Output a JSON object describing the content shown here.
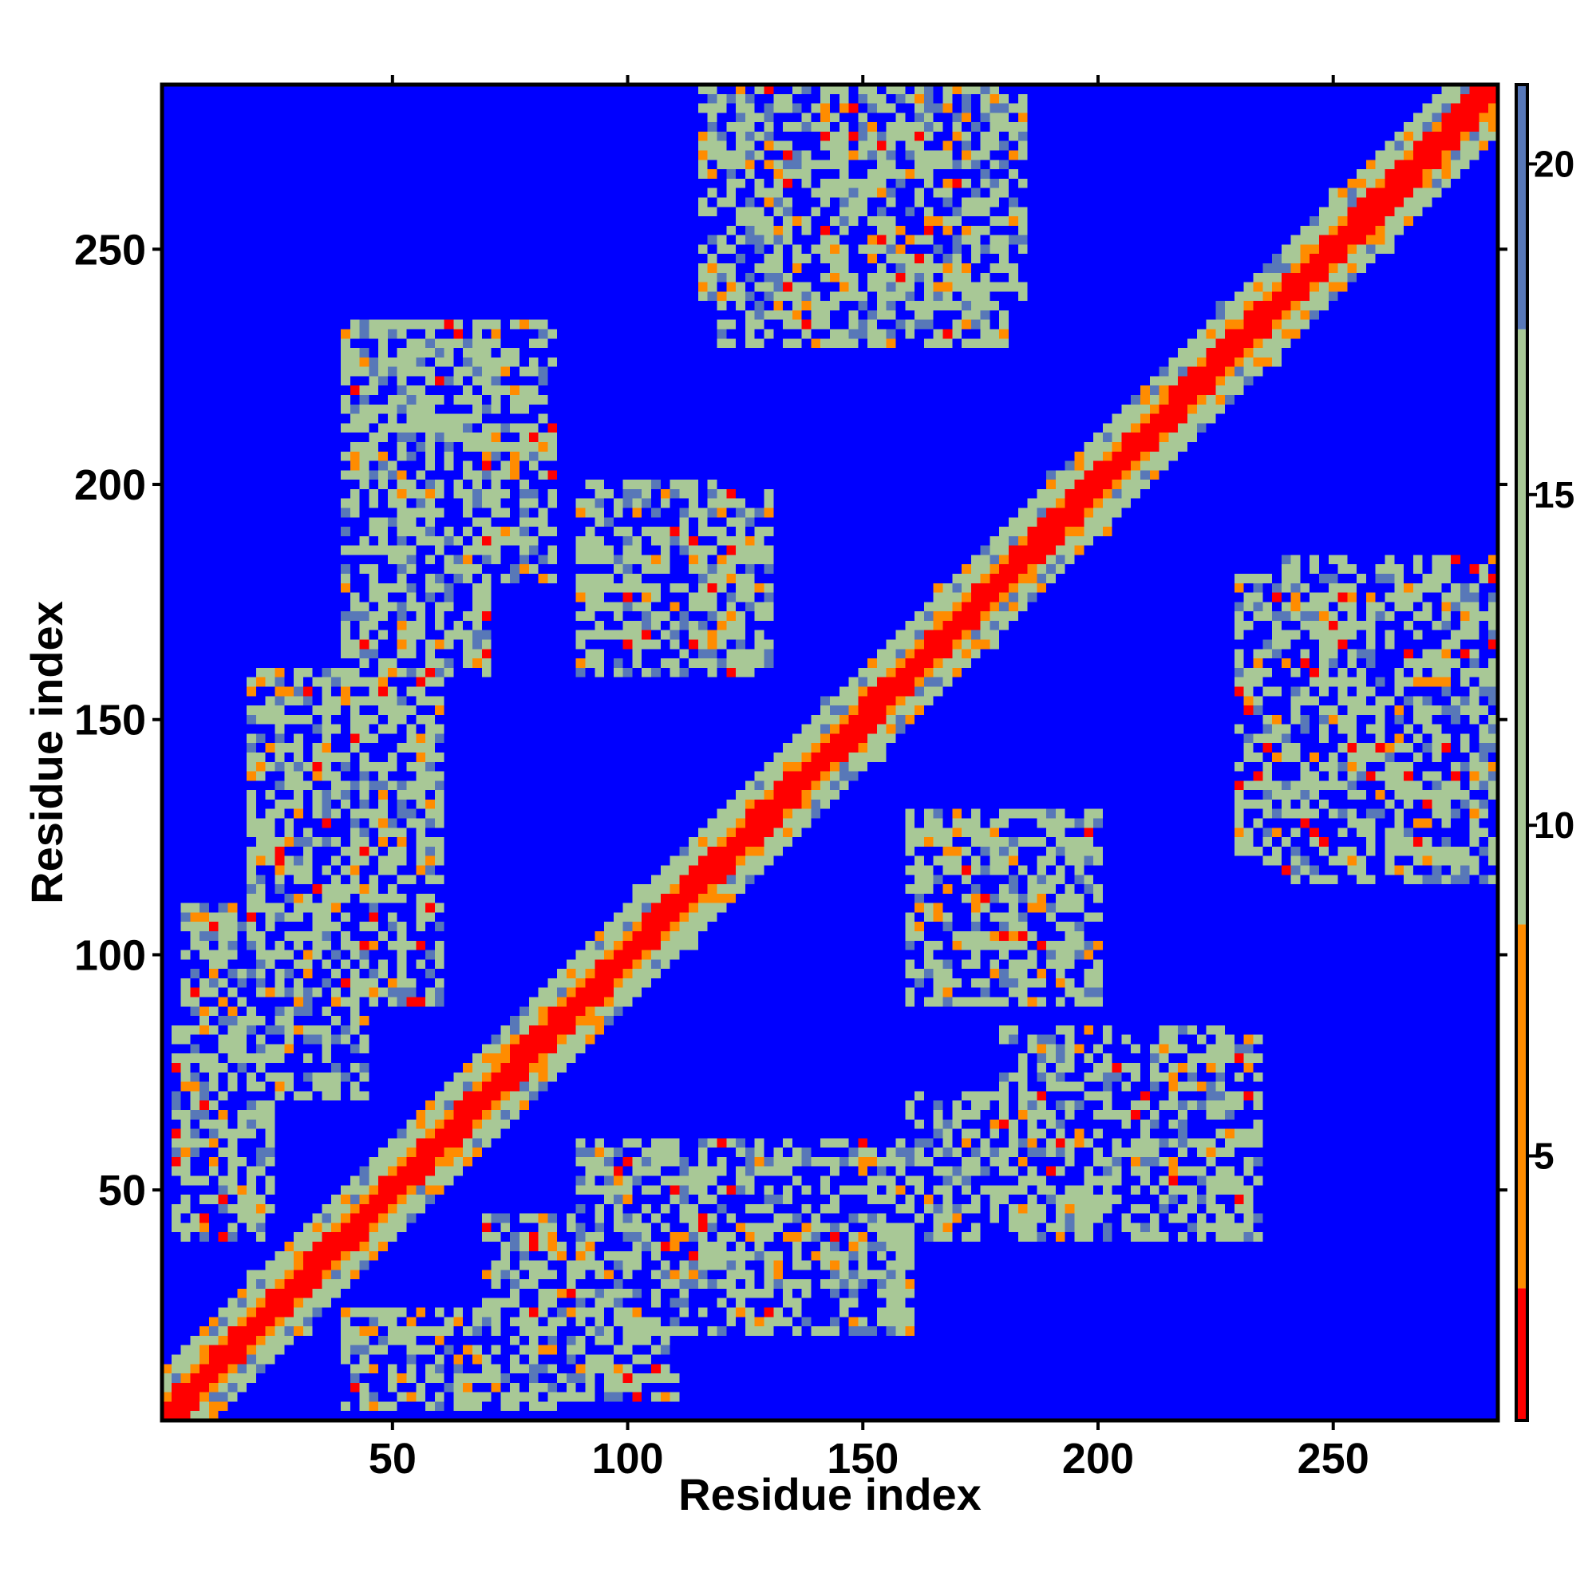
{
  "chart_data": {
    "type": "heatmap",
    "title": "",
    "xlabel": "Residue index",
    "ylabel": "Residue index",
    "xlim": [
      1,
      285
    ],
    "ylim": [
      1,
      285
    ],
    "x_ticks": [
      50,
      100,
      150,
      200,
      250
    ],
    "y_ticks": [
      50,
      100,
      150,
      200,
      250
    ],
    "x_tick_labels": [
      "50",
      "100",
      "150",
      "200",
      "250"
    ],
    "y_tick_labels": [
      "50",
      "100",
      "150",
      "200",
      "250"
    ],
    "colorbar": {
      "range": [
        1,
        21.2
      ],
      "ticks": [
        5,
        10,
        15,
        20
      ],
      "tick_labels": [
        "5",
        "10",
        "15",
        "20"
      ],
      "colors": [
        "#ff0000",
        "#ff8c00",
        "#a8c896",
        "#5878b8",
        "#0000ff"
      ]
    },
    "grid": false,
    "description_of_values": "symmetric residue-residue distance map; diagonal ~1-4 (red), contact regions ~8-15 (green), background ~21 (blue)",
    "contact_regions": [
      {
        "x": [
          1,
          285
        ],
        "y": [
          1,
          285
        ],
        "kind": "diagonal"
      },
      {
        "x": [
          90,
          160
        ],
        "y": [
          20,
          60
        ]
      },
      {
        "x": [
          180,
          235
        ],
        "y": [
          45,
          85
        ]
      },
      {
        "x": [
          30,
          55
        ],
        "y": [
          90,
          135
        ]
      },
      {
        "x": [
          5,
          45
        ],
        "y": [
          70,
          110
        ]
      },
      {
        "x": [
          40,
          70
        ],
        "y": [
          160,
          235
        ]
      },
      {
        "x": [
          120,
          180
        ],
        "y": [
          230,
          285
        ]
      },
      {
        "x": [
          160,
          190
        ],
        "y": [
          95,
          125
        ]
      },
      {
        "x": [
          240,
          285
        ],
        "y": [
          115,
          185
        ]
      },
      {
        "x": [
          90,
          130
        ],
        "y": [
          160,
          200
        ]
      },
      {
        "x": [
          40,
          85
        ],
        "y": [
          3,
          25
        ]
      }
    ]
  }
}
